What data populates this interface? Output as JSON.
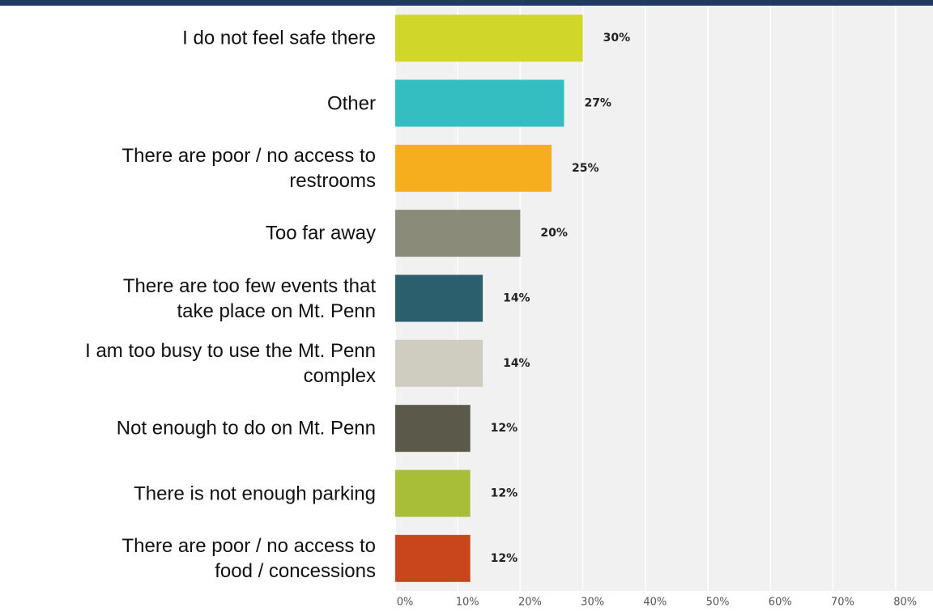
{
  "chart_data": {
    "type": "barh",
    "categories": [
      "I do not feel safe there",
      "Other",
      "There are poor / no access to\nrestrooms",
      "Too far away",
      "There are too few events that\ntake place on Mt. Penn",
      "I am too busy to use the Mt. Penn\ncomplex",
      "Not enough to do on Mt. Penn",
      "There is not enough parking",
      "There are poor / no access to\nfood / concessions"
    ],
    "values": [
      30,
      27,
      25,
      20,
      14,
      14,
      12,
      12,
      12
    ],
    "value_labels": [
      "30%",
      "27%",
      "25%",
      "20%",
      "14%",
      "14%",
      "12%",
      "12%",
      "12%"
    ],
    "colors": [
      "#d0d62a",
      "#35bec1",
      "#f6ae1e",
      "#8a8b79",
      "#2c5f6e",
      "#cecdc0",
      "#5b5a4a",
      "#a8be38",
      "#c9451b"
    ],
    "xlim": [
      0,
      86
    ],
    "xticks": [
      {
        "value": 0,
        "label": "0%"
      },
      {
        "value": 10,
        "label": "10%"
      },
      {
        "value": 20,
        "label": "20%"
      },
      {
        "value": 30,
        "label": "30%"
      },
      {
        "value": 40,
        "label": "40%"
      },
      {
        "value": 50,
        "label": "50%"
      },
      {
        "value": 60,
        "label": "60%"
      },
      {
        "value": 70,
        "label": "70%"
      },
      {
        "value": 80,
        "label": "80%"
      }
    ],
    "grid": true
  }
}
